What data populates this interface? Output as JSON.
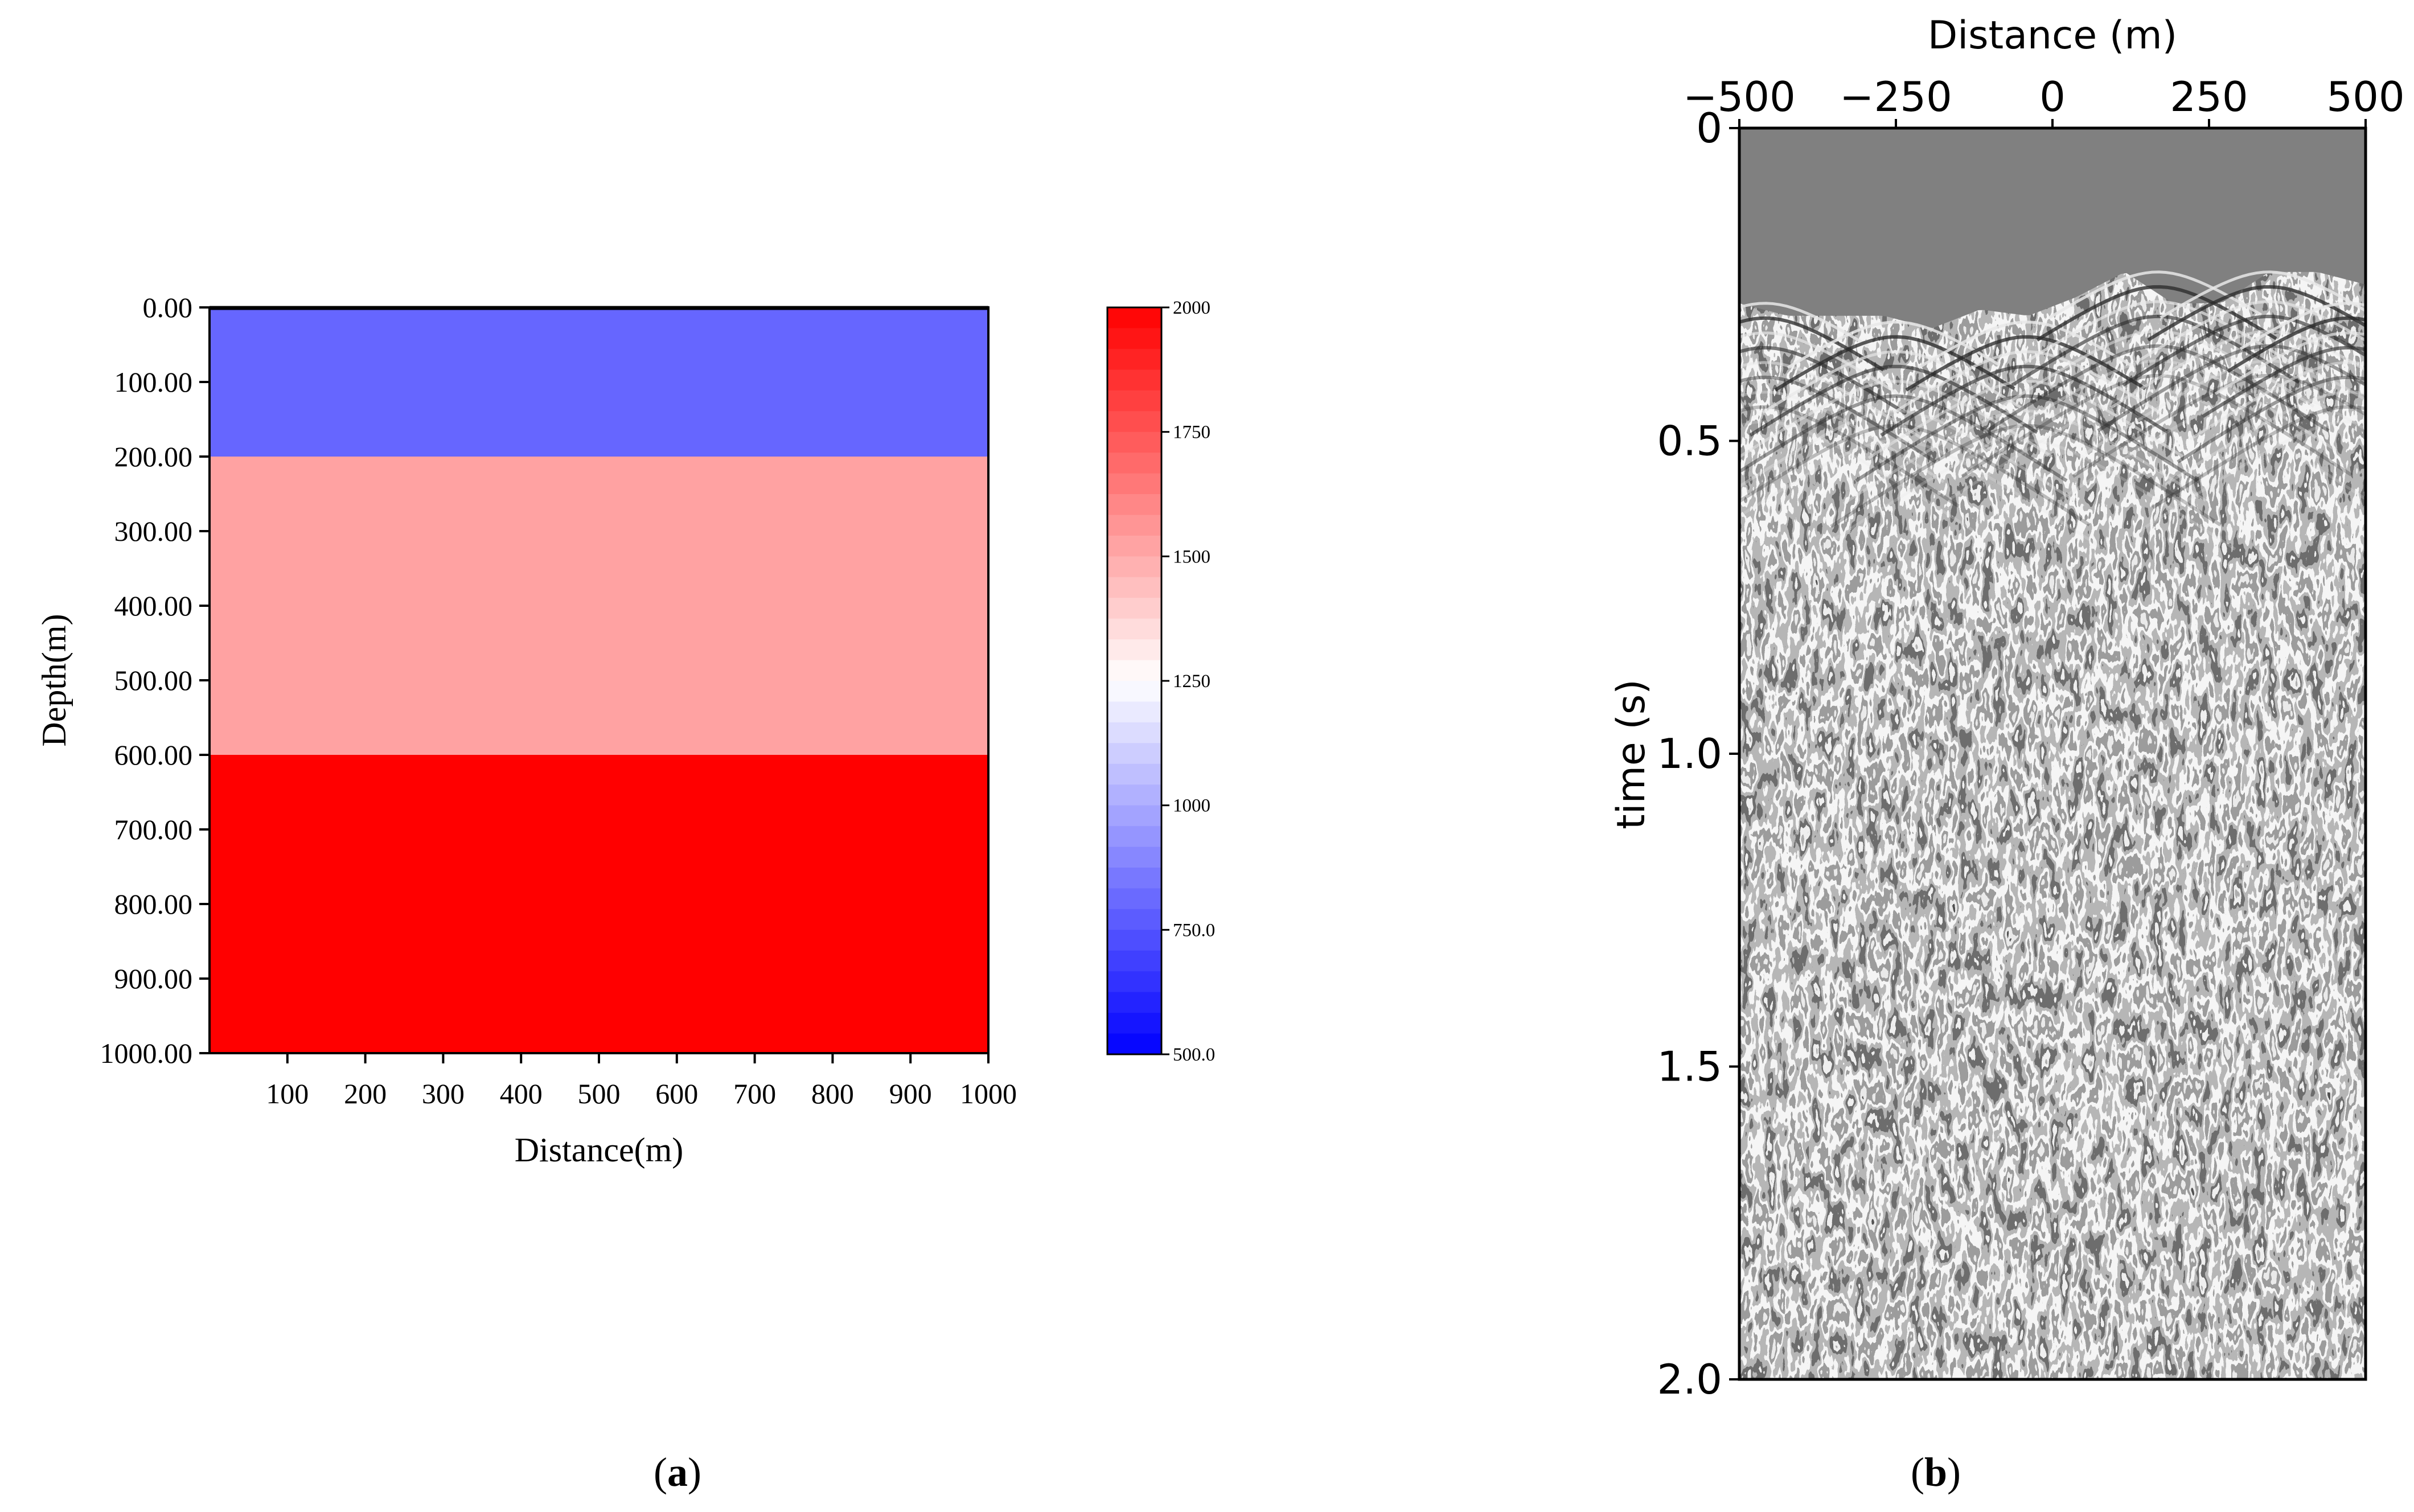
{
  "panel_labels": [
    {
      "prefix": "(",
      "letter": "a",
      "suffix": ")"
    },
    {
      "prefix": "(",
      "letter": "b",
      "suffix": ")"
    }
  ],
  "chart_data": [
    {
      "type": "heatmap",
      "xlabel": "Distance(m)",
      "ylabel": "Depth(m)",
      "xlim": [
        0,
        1000
      ],
      "ylim": [
        1000,
        0
      ],
      "xticks": [
        "100",
        "200",
        "300",
        "400",
        "500",
        "600",
        "700",
        "800",
        "900",
        "1000"
      ],
      "yticks": [
        "0.00",
        "100.00",
        "200.00",
        "300.00",
        "400.00",
        "500.00",
        "600.00",
        "700.00",
        "800.00",
        "900.00",
        "1000.00"
      ],
      "layers": [
        {
          "depth_top": 0,
          "depth_bottom": 200,
          "velocity": 1000
        },
        {
          "depth_top": 200,
          "depth_bottom": 600,
          "velocity": 1500
        },
        {
          "depth_top": 600,
          "depth_bottom": 1000,
          "velocity": 2000
        }
      ],
      "colorbar": {
        "range": [
          500,
          2000
        ],
        "ticks": [
          "2000",
          "1750",
          "1500",
          "1250",
          "1000",
          "750.0",
          "500.0"
        ],
        "colormap": "blue-white-red",
        "low_color": "#0000ff",
        "mid_color": "#ffffff",
        "high_color": "#ff0000"
      },
      "colors": {
        "layer1": "#6666ff",
        "layer2": "#ffa2a2",
        "layer3": "#ff0000"
      }
    },
    {
      "type": "heatmap",
      "xlabel": "Distance (m)",
      "ylabel": "time (s)",
      "xlim": [
        -500,
        500
      ],
      "ylim": [
        2.0,
        0
      ],
      "xticks": [
        "−500",
        "−250",
        "0",
        "250",
        "500"
      ],
      "yticks": [
        "0",
        "0.5",
        "1.0",
        "1.5",
        "2.0"
      ],
      "colormap": "grayscale",
      "background_color": "#808080",
      "first_arrival_time_s": [
        0.28,
        0.3,
        0.3,
        0.3,
        0.32,
        0.29,
        0.3,
        0.27,
        0.23,
        0.28,
        0.28,
        0.23,
        0.23,
        0.25
      ]
    }
  ]
}
